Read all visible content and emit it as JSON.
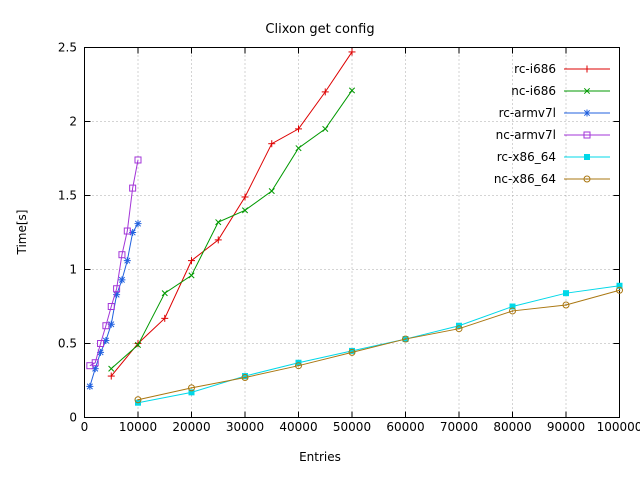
{
  "chart_data": {
    "type": "line",
    "title": "Clixon get config",
    "xlabel": "Entries",
    "ylabel": "Time[s]",
    "xlim": [
      0,
      100000
    ],
    "ylim": [
      0,
      2.5
    ],
    "grid": true,
    "legend_position": "top-right",
    "xticks": [
      0,
      10000,
      20000,
      30000,
      40000,
      50000,
      60000,
      70000,
      80000,
      90000,
      100000
    ],
    "xtick_labels": [
      "0",
      "10000",
      "20000",
      "30000",
      "40000",
      "50000",
      "60000",
      "70000",
      "80000",
      "90000",
      "100000"
    ],
    "yticks": [
      0,
      0.5,
      1,
      1.5,
      2,
      2.5
    ],
    "ytick_labels": [
      "0",
      "0.5",
      "1",
      "1.5",
      "2",
      "2.5"
    ],
    "colors": {
      "border": "#000000",
      "grid": "#a8a8a8",
      "background": "#ffffff"
    },
    "series": [
      {
        "name": "rc-i686",
        "color": "#dd0000",
        "marker": "plus",
        "x": [
          5000,
          10000,
          15000,
          20000,
          25000,
          30000,
          35000,
          40000,
          45000,
          50000
        ],
        "y": [
          0.28,
          0.5,
          0.67,
          1.06,
          1.2,
          1.49,
          1.85,
          1.95,
          2.2,
          2.47
        ]
      },
      {
        "name": "nc-i686",
        "color": "#009900",
        "marker": "cross",
        "x": [
          5000,
          10000,
          15000,
          20000,
          25000,
          30000,
          35000,
          40000,
          45000,
          50000
        ],
        "y": [
          0.33,
          0.49,
          0.84,
          0.96,
          1.32,
          1.4,
          1.53,
          1.82,
          1.95,
          2.21
        ]
      },
      {
        "name": "rc-armv7l",
        "color": "#2060df",
        "marker": "asterisk",
        "x": [
          1000,
          2000,
          3000,
          4000,
          5000,
          6000,
          7000,
          8000,
          9000,
          10000
        ],
        "y": [
          0.21,
          0.33,
          0.44,
          0.52,
          0.63,
          0.83,
          0.93,
          1.06,
          1.25,
          1.31
        ]
      },
      {
        "name": "nc-armv7l",
        "color": "#a335d8",
        "marker": "square-open",
        "x": [
          1000,
          2000,
          3000,
          4000,
          5000,
          6000,
          7000,
          8000,
          9000,
          10000
        ],
        "y": [
          0.35,
          0.37,
          0.5,
          0.62,
          0.75,
          0.87,
          1.1,
          1.26,
          1.55,
          1.74
        ]
      },
      {
        "name": "rc-x86_64",
        "color": "#00d8e8",
        "marker": "square-filled",
        "x": [
          10000,
          20000,
          30000,
          40000,
          50000,
          60000,
          70000,
          80000,
          90000,
          100000
        ],
        "y": [
          0.1,
          0.17,
          0.28,
          0.37,
          0.45,
          0.53,
          0.62,
          0.75,
          0.84,
          0.89
        ]
      },
      {
        "name": "nc-x86_64",
        "color": "#aa7711",
        "marker": "circle-open",
        "x": [
          10000,
          20000,
          30000,
          40000,
          50000,
          60000,
          70000,
          80000,
          90000,
          100000
        ],
        "y": [
          0.12,
          0.2,
          0.27,
          0.35,
          0.44,
          0.53,
          0.6,
          0.72,
          0.76,
          0.86
        ]
      }
    ]
  }
}
